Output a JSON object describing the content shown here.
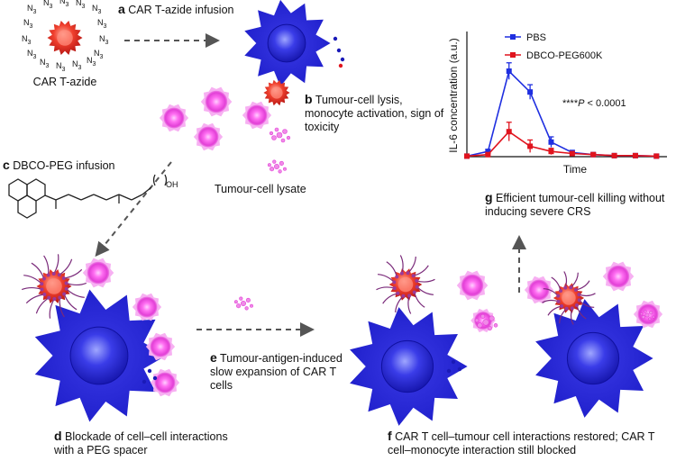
{
  "colors": {
    "macrophage": "#2a2ad6",
    "tcell": "#e8322a",
    "tumour": "#e23fd6",
    "arrow": "#555555",
    "pbs": "#1f2fe0",
    "dbco": "#e0141e"
  },
  "steps": {
    "a": {
      "letter": "a",
      "text": "CAR T-azide infusion"
    },
    "b": {
      "letter": "b",
      "text": "Tumour-cell lysis, monocyte activation, sign of toxicity"
    },
    "c": {
      "letter": "c",
      "text": "DBCO-PEG infusion"
    },
    "d": {
      "letter": "d",
      "text": "Blockade of cell–cell interactions with a PEG spacer"
    },
    "e": {
      "letter": "e",
      "text": "Tumour-antigen-induced slow expansion of CAR T cells"
    },
    "f": {
      "letter": "f",
      "text": "CAR T cell–tumour cell interactions restored; CAR T cell–monocyte interaction still blocked"
    },
    "g": {
      "letter": "g",
      "text": "Efficient tumour-cell killing without inducing severe CRS"
    }
  },
  "labels": {
    "car_t_azide": "CAR T-azide",
    "tumour_lysate": "Tumour-cell lysate",
    "azide_symbol": "N",
    "azide_subscript": "3",
    "oh_label": "OH"
  },
  "chart_data": {
    "type": "line",
    "xlabel": "Time",
    "ylabel": "IL-6 concentration (a.u.)",
    "x": [
      1,
      2,
      3,
      4,
      5,
      6,
      7,
      8,
      9,
      10
    ],
    "series": [
      {
        "name": "PBS",
        "values": [
          0.5,
          5,
          82,
          62,
          14,
          4,
          2,
          1,
          1,
          0.5
        ],
        "errors": [
          0,
          2,
          8,
          7,
          5,
          2,
          1,
          0,
          0,
          0
        ]
      },
      {
        "name": "DBCO-PEG600K",
        "values": [
          0.5,
          2,
          24,
          10,
          5,
          3,
          2,
          1,
          1,
          0.5
        ],
        "errors": [
          0,
          1,
          9,
          6,
          3,
          1,
          1,
          0,
          0,
          0
        ]
      }
    ],
    "ylim": [
      0,
      120
    ],
    "annotation_stars": "****",
    "annotation_p": "P",
    "annotation_rest": " < 0.0001",
    "legend_placement": "top-left"
  }
}
